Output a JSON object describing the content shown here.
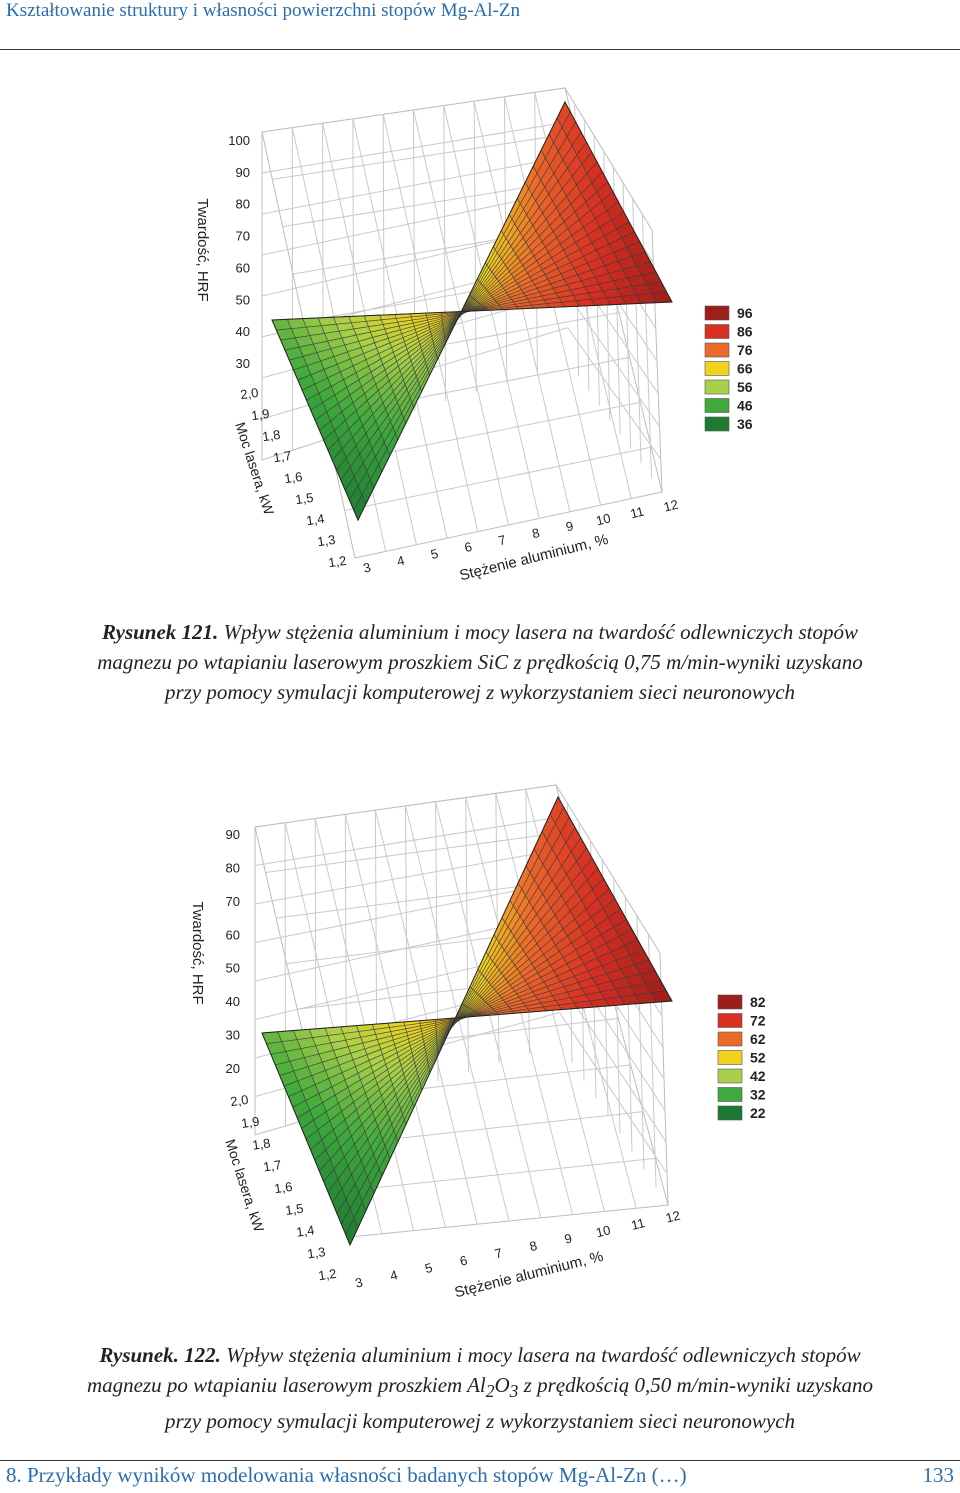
{
  "header": {
    "title": "Kształtowanie struktury i własności powierzchni stopów Mg-Al-Zn"
  },
  "footer": {
    "chapter": "8. Przykłady wyników modelowania własności badanych stopów Mg-Al-Zn (…)",
    "page_number": "133"
  },
  "figures": [
    {
      "caption_label": "Rysunek 121.",
      "caption_line1": "Wpływ stężenia aluminium i mocy lasera na twardość odlewniczych stopów",
      "caption_line2": "magnezu po wtapianiu laserowym proszkiem SiC z prędkością 0,75 m/min-wyniki uzyskano",
      "caption_line3": "przy pomocy symulacji komputerowej z wykorzystaniem sieci neuronowych"
    },
    {
      "caption_label": "Rysunek. 122.",
      "caption_line1": "Wpływ stężenia aluminium i mocy lasera na twardość odlewniczych stopów",
      "caption_line2_pre": "magnezu po wtapianiu laserowym proszkiem Al",
      "caption_sub1": "2",
      "caption_mid": "O",
      "caption_sub2": "3",
      "caption_line2_post": " z prędkością 0,50 m/min-wyniki uzyskano",
      "caption_line3": "przy pomocy symulacji komputerowej z wykorzystaniem sieci neuronowych"
    }
  ],
  "chart_data": [
    {
      "type": "surface3d",
      "zlabel": "Twardość, HRF",
      "ylabel": "Moc lasera, kW",
      "xlabel": "Stężenie aluminium, %",
      "z_ticks": [
        "100",
        "90",
        "80",
        "70",
        "60",
        "50",
        "40",
        "30"
      ],
      "y_ticks": [
        "2,0",
        "1,9",
        "1,8",
        "1,7",
        "1,6",
        "1,5",
        "1,4",
        "1,3",
        "1,2"
      ],
      "x_ticks": [
        "3",
        "4",
        "5",
        "6",
        "7",
        "8",
        "9",
        "10",
        "11",
        "12"
      ],
      "legend": [
        "96",
        "86",
        "76",
        "66",
        "56",
        "46",
        "36"
      ],
      "legend_colors": [
        "#9c1d1a",
        "#d83023",
        "#ec6a2a",
        "#f1d21e",
        "#a8d04a",
        "#3fa93d",
        "#1e7a32"
      ]
    },
    {
      "type": "surface3d",
      "zlabel": "Twardość, HRF",
      "ylabel": "Moc lasera, kW",
      "xlabel": "Stężenie aluminium, %",
      "z_ticks": [
        "90",
        "80",
        "70",
        "60",
        "50",
        "40",
        "30",
        "20"
      ],
      "y_ticks": [
        "2,0",
        "1,9",
        "1,8",
        "1,7",
        "1,6",
        "1,5",
        "1,4",
        "1,3",
        "1,2"
      ],
      "x_ticks": [
        "3",
        "4",
        "5",
        "6",
        "7",
        "8",
        "9",
        "10",
        "11",
        "12"
      ],
      "legend": [
        "82",
        "72",
        "62",
        "52",
        "42",
        "32",
        "22"
      ],
      "legend_colors": [
        "#9c1d1a",
        "#d83023",
        "#ec6a2a",
        "#f1d21e",
        "#a8d04a",
        "#3fa93d",
        "#1e7a32"
      ]
    }
  ]
}
